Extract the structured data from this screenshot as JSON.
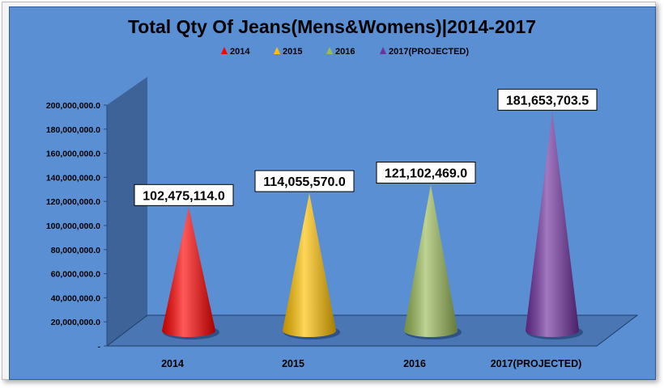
{
  "chart_data": {
    "type": "bar",
    "shape": "cone",
    "title": "Total Qty Of Jeans(Mens&Womens)|2014-2017",
    "categories": [
      "2014",
      "2015",
      "2016",
      "2017(PROJECTED)"
    ],
    "values": [
      102475114.0,
      114055570.0,
      121102469.0,
      181653703.5
    ],
    "data_labels": [
      "102,475,114.0",
      "114,055,570.0",
      "121,102,469.0",
      "181,653,703.5"
    ],
    "colors": [
      "#ff0000",
      "#ffc000",
      "#9bbb59",
      "#7030a0"
    ],
    "legend": {
      "position": "top",
      "entries": [
        "2014",
        "2015",
        "2016",
        "2017(PROJECTED)"
      ]
    },
    "yticks": [
      "-",
      "20,000,000.0",
      "40,000,000.0",
      "60,000,000.0",
      "80,000,000.0",
      "100,000,000.0",
      "120,000,000.0",
      "140,000,000.0",
      "160,000,000.0",
      "180,000,000.0",
      "200,000,000.0"
    ],
    "ylim": [
      0,
      200000000
    ],
    "xlabel": "",
    "ylabel": "",
    "grid": false,
    "background_color": "#5a8fd4"
  }
}
